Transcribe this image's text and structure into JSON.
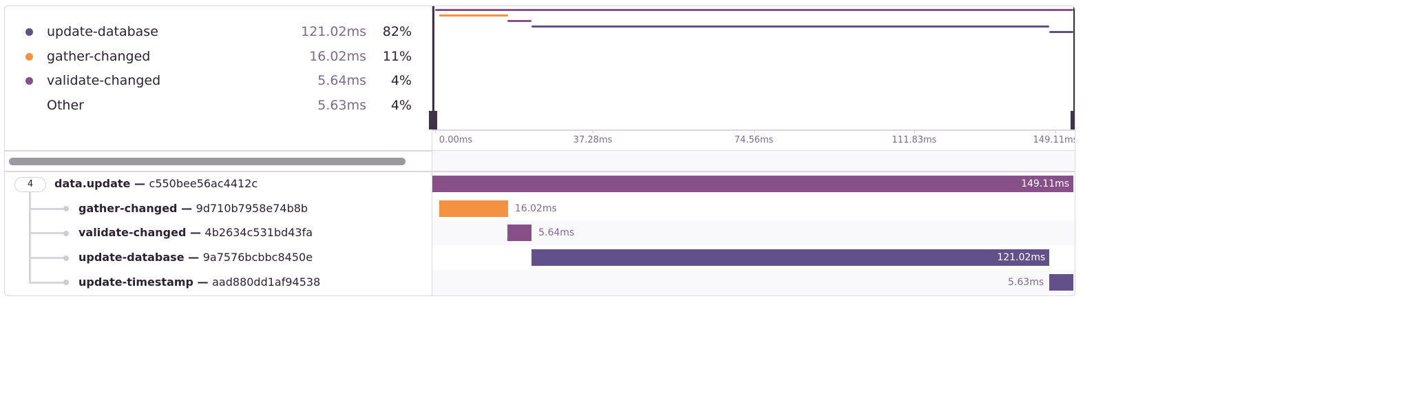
{
  "legend": [
    {
      "name": "update-database",
      "duration": "121.02ms",
      "percent": "82%",
      "color": "#62508a"
    },
    {
      "name": "gather-changed",
      "duration": "16.02ms",
      "percent": "11%",
      "color": "#f49241"
    },
    {
      "name": "validate-changed",
      "duration": "5.64ms",
      "percent": "4%",
      "color": "#875089"
    },
    {
      "name": "Other",
      "duration": "5.63ms",
      "percent": "4%",
      "color": ""
    }
  ],
  "axis": {
    "ticks": [
      "0.00ms",
      "37.28ms",
      "74.56ms",
      "111.83ms",
      "149.11ms"
    ],
    "max_ms": 149.11
  },
  "tree": {
    "child_count": "4"
  },
  "spans": [
    {
      "op": "data.update",
      "sep": " — ",
      "id": "c550bee56ac4412c",
      "start_ms": 0,
      "duration_ms": 149.11,
      "duration": "149.11ms",
      "color": "#875089",
      "root": true
    },
    {
      "op": "gather-changed",
      "sep": " — ",
      "id": "9d710b7958e74b8b",
      "start_ms": 1.0,
      "duration_ms": 16.02,
      "duration": "16.02ms",
      "color": "#f49241"
    },
    {
      "op": "validate-changed",
      "sep": " — ",
      "id": "4b2634c531bd43fa",
      "start_ms": 16.9,
      "duration_ms": 5.64,
      "duration": "5.64ms",
      "color": "#875089"
    },
    {
      "op": "update-database",
      "sep": " — ",
      "id": "9a7576bcbbc8450e",
      "start_ms": 22.5,
      "duration_ms": 121.02,
      "duration": "121.02ms",
      "color": "#62508a"
    },
    {
      "op": "update-timestamp",
      "sep": " — ",
      "id": "aad880dd1af94538",
      "start_ms": 143.5,
      "duration_ms": 5.63,
      "duration": "5.63ms",
      "color": "#62508a"
    }
  ]
}
